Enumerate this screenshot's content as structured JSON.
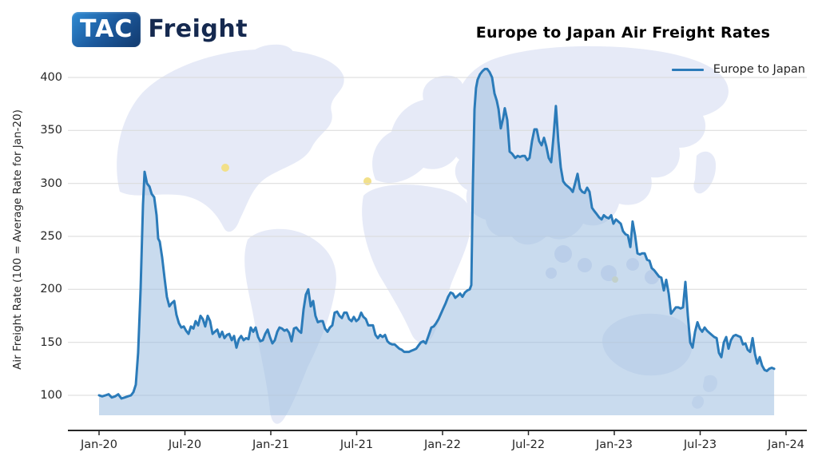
{
  "branding": {
    "logo_primary": "TAC",
    "logo_secondary": "Freight"
  },
  "header": {
    "title": "Europe to Japan Air Freight Rates"
  },
  "legend": {
    "label": "Europe to Japan"
  },
  "colors": {
    "line": "#2b7bb9",
    "fill": "#9dbde0",
    "grid": "#d9d9d9",
    "axis": "#262626",
    "map_watermark": "#e6eaf7",
    "map_marker_yellow": "#f2e089",
    "logo_badge_blue": "#1c5a9e",
    "logo_text_navy": "#15294f"
  },
  "chart_data": {
    "type": "area",
    "title": "Europe to Japan Air Freight Rates",
    "xlabel": "",
    "ylabel": "Air Freight Rate (100 = Average Rate for Jan-20)",
    "x_unit": "months_since_Jan-2020",
    "grid": "horizontal",
    "legend_position": "upper right",
    "ylim": [
      81,
      420
    ],
    "y_ticks": [
      100,
      150,
      200,
      250,
      300,
      350,
      400
    ],
    "x_ticks": [
      {
        "label": "Jan-20",
        "month": 0
      },
      {
        "label": "Jul-20",
        "month": 6
      },
      {
        "label": "Jan-21",
        "month": 12
      },
      {
        "label": "Jul-21",
        "month": 18
      },
      {
        "label": "Jan-22",
        "month": 24
      },
      {
        "label": "Jul-22",
        "month": 30
      },
      {
        "label": "Jan-23",
        "month": 36
      },
      {
        "label": "Jul-23",
        "month": 42
      },
      {
        "label": "Jan-24",
        "month": 48
      }
    ],
    "series": [
      {
        "name": "Europe to Japan",
        "points": [
          [
            0,
            100
          ],
          [
            0.22,
            99
          ],
          [
            0.45,
            100
          ],
          [
            0.67,
            101
          ],
          [
            0.89,
            98
          ],
          [
            1.12,
            99
          ],
          [
            1.34,
            101
          ],
          [
            1.56,
            97
          ],
          [
            1.79,
            98
          ],
          [
            2.01,
            99
          ],
          [
            2.23,
            100
          ],
          [
            2.4,
            103
          ],
          [
            2.57,
            110
          ],
          [
            2.73,
            140
          ],
          [
            2.9,
            200
          ],
          [
            3.07,
            280
          ],
          [
            3.18,
            311
          ],
          [
            3.35,
            300
          ],
          [
            3.52,
            297
          ],
          [
            3.68,
            290
          ],
          [
            3.85,
            287
          ],
          [
            4.02,
            270
          ],
          [
            4.13,
            248
          ],
          [
            4.24,
            245
          ],
          [
            4.41,
            230
          ],
          [
            4.58,
            210
          ],
          [
            4.74,
            193
          ],
          [
            4.91,
            184
          ],
          [
            5.08,
            187
          ],
          [
            5.25,
            189
          ],
          [
            5.41,
            176
          ],
          [
            5.58,
            168
          ],
          [
            5.75,
            164
          ],
          [
            5.92,
            165
          ],
          [
            6.08,
            161
          ],
          [
            6.25,
            158
          ],
          [
            6.42,
            165
          ],
          [
            6.59,
            163
          ],
          [
            6.75,
            170
          ],
          [
            6.92,
            166
          ],
          [
            7.09,
            175
          ],
          [
            7.25,
            172
          ],
          [
            7.42,
            165
          ],
          [
            7.59,
            175
          ],
          [
            7.76,
            170
          ],
          [
            7.93,
            158
          ],
          [
            8.09,
            160
          ],
          [
            8.26,
            162
          ],
          [
            8.43,
            155
          ],
          [
            8.6,
            160
          ],
          [
            8.76,
            154
          ],
          [
            8.93,
            157
          ],
          [
            9.1,
            158
          ],
          [
            9.27,
            152
          ],
          [
            9.43,
            156
          ],
          [
            9.6,
            145
          ],
          [
            9.77,
            153
          ],
          [
            9.93,
            156
          ],
          [
            10.1,
            152
          ],
          [
            10.27,
            154
          ],
          [
            10.44,
            153
          ],
          [
            10.6,
            164
          ],
          [
            10.77,
            160
          ],
          [
            10.94,
            164
          ],
          [
            11.11,
            155
          ],
          [
            11.27,
            151
          ],
          [
            11.44,
            152
          ],
          [
            11.61,
            158
          ],
          [
            11.78,
            162
          ],
          [
            11.94,
            155
          ],
          [
            12.11,
            149
          ],
          [
            12.28,
            152
          ],
          [
            12.45,
            160
          ],
          [
            12.61,
            164
          ],
          [
            12.78,
            163
          ],
          [
            12.95,
            161
          ],
          [
            13.12,
            162
          ],
          [
            13.28,
            159
          ],
          [
            13.45,
            151
          ],
          [
            13.62,
            163
          ],
          [
            13.78,
            164
          ],
          [
            13.95,
            161
          ],
          [
            14.12,
            159
          ],
          [
            14.29,
            181
          ],
          [
            14.45,
            195
          ],
          [
            14.62,
            200
          ],
          [
            14.79,
            184
          ],
          [
            14.96,
            189
          ],
          [
            15.12,
            175
          ],
          [
            15.29,
            169
          ],
          [
            15.46,
            170
          ],
          [
            15.63,
            170
          ],
          [
            15.79,
            163
          ],
          [
            15.96,
            160
          ],
          [
            16.13,
            164
          ],
          [
            16.3,
            166
          ],
          [
            16.46,
            178
          ],
          [
            16.63,
            179
          ],
          [
            16.8,
            175
          ],
          [
            16.97,
            173
          ],
          [
            17.13,
            178
          ],
          [
            17.3,
            178
          ],
          [
            17.47,
            172
          ],
          [
            17.64,
            170
          ],
          [
            17.8,
            174
          ],
          [
            17.97,
            170
          ],
          [
            18.14,
            172
          ],
          [
            18.31,
            178
          ],
          [
            18.47,
            174
          ],
          [
            18.64,
            172
          ],
          [
            18.81,
            166
          ],
          [
            18.97,
            166
          ],
          [
            19.14,
            166
          ],
          [
            19.31,
            157
          ],
          [
            19.48,
            154
          ],
          [
            19.64,
            157
          ],
          [
            19.81,
            155
          ],
          [
            19.98,
            157
          ],
          [
            20.15,
            151
          ],
          [
            20.31,
            149
          ],
          [
            20.48,
            148
          ],
          [
            20.65,
            148
          ],
          [
            20.82,
            146
          ],
          [
            20.98,
            144
          ],
          [
            21.15,
            143
          ],
          [
            21.32,
            141
          ],
          [
            21.49,
            141
          ],
          [
            21.65,
            141
          ],
          [
            21.82,
            142
          ],
          [
            21.99,
            143
          ],
          [
            22.16,
            144
          ],
          [
            22.32,
            147
          ],
          [
            22.49,
            150
          ],
          [
            22.66,
            151
          ],
          [
            22.83,
            149
          ],
          [
            22.99,
            155
          ],
          [
            23.22,
            164
          ],
          [
            23.38,
            165
          ],
          [
            23.55,
            168
          ],
          [
            23.72,
            172
          ],
          [
            23.89,
            177
          ],
          [
            24.05,
            182
          ],
          [
            24.22,
            187
          ],
          [
            24.39,
            193
          ],
          [
            24.56,
            197
          ],
          [
            24.72,
            196
          ],
          [
            24.89,
            192
          ],
          [
            25.06,
            194
          ],
          [
            25.23,
            196
          ],
          [
            25.39,
            193
          ],
          [
            25.56,
            197
          ],
          [
            25.73,
            199
          ],
          [
            25.9,
            200
          ],
          [
            26.01,
            204
          ],
          [
            26.12,
            300
          ],
          [
            26.23,
            370
          ],
          [
            26.34,
            390
          ],
          [
            26.45,
            398
          ],
          [
            26.62,
            403
          ],
          [
            26.79,
            406
          ],
          [
            26.96,
            408
          ],
          [
            27.12,
            408
          ],
          [
            27.29,
            405
          ],
          [
            27.46,
            400
          ],
          [
            27.63,
            385
          ],
          [
            27.79,
            378
          ],
          [
            27.91,
            370
          ],
          [
            28.07,
            352
          ],
          [
            28.24,
            362
          ],
          [
            28.35,
            371
          ],
          [
            28.52,
            360
          ],
          [
            28.69,
            330
          ],
          [
            28.86,
            328
          ],
          [
            29.08,
            324
          ],
          [
            29.25,
            326
          ],
          [
            29.41,
            325
          ],
          [
            29.58,
            326
          ],
          [
            29.75,
            326
          ],
          [
            29.92,
            322
          ],
          [
            30.08,
            324
          ],
          [
            30.25,
            340
          ],
          [
            30.42,
            351
          ],
          [
            30.58,
            351
          ],
          [
            30.75,
            340
          ],
          [
            30.92,
            336
          ],
          [
            31.09,
            343
          ],
          [
            31.25,
            335
          ],
          [
            31.42,
            324
          ],
          [
            31.59,
            320
          ],
          [
            31.76,
            345
          ],
          [
            31.92,
            373
          ],
          [
            32.09,
            340
          ],
          [
            32.26,
            315
          ],
          [
            32.43,
            302
          ],
          [
            32.59,
            299
          ],
          [
            32.76,
            297
          ],
          [
            32.93,
            295
          ],
          [
            33.1,
            292
          ],
          [
            33.26,
            300
          ],
          [
            33.43,
            309
          ],
          [
            33.6,
            295
          ],
          [
            33.77,
            292
          ],
          [
            33.93,
            291
          ],
          [
            34.1,
            296
          ],
          [
            34.27,
            292
          ],
          [
            34.44,
            277
          ],
          [
            34.6,
            274
          ],
          [
            34.77,
            271
          ],
          [
            34.94,
            268
          ],
          [
            35.11,
            266
          ],
          [
            35.27,
            270
          ],
          [
            35.44,
            268
          ],
          [
            35.61,
            267
          ],
          [
            35.78,
            270
          ],
          [
            35.94,
            262
          ],
          [
            36.11,
            266
          ],
          [
            36.28,
            264
          ],
          [
            36.45,
            262
          ],
          [
            36.61,
            255
          ],
          [
            36.78,
            252
          ],
          [
            36.95,
            251
          ],
          [
            37.12,
            240
          ],
          [
            37.28,
            264
          ],
          [
            37.45,
            251
          ],
          [
            37.62,
            234
          ],
          [
            37.79,
            233
          ],
          [
            37.95,
            234
          ],
          [
            38.12,
            234
          ],
          [
            38.29,
            228
          ],
          [
            38.46,
            227
          ],
          [
            38.62,
            220
          ],
          [
            38.79,
            218
          ],
          [
            38.96,
            215
          ],
          [
            39.13,
            212
          ],
          [
            39.29,
            211
          ],
          [
            39.46,
            199
          ],
          [
            39.63,
            209
          ],
          [
            39.8,
            196
          ],
          [
            39.96,
            177
          ],
          [
            40.13,
            180
          ],
          [
            40.3,
            183
          ],
          [
            40.47,
            183
          ],
          [
            40.63,
            182
          ],
          [
            40.8,
            183
          ],
          [
            40.97,
            207
          ],
          [
            41.14,
            175
          ],
          [
            41.3,
            150
          ],
          [
            41.47,
            145
          ],
          [
            41.64,
            160
          ],
          [
            41.81,
            169
          ],
          [
            41.97,
            163
          ],
          [
            42.14,
            160
          ],
          [
            42.31,
            164
          ],
          [
            42.48,
            161
          ],
          [
            42.64,
            159
          ],
          [
            42.81,
            157
          ],
          [
            42.98,
            155
          ],
          [
            43.15,
            154
          ],
          [
            43.31,
            140
          ],
          [
            43.48,
            136
          ],
          [
            43.65,
            150
          ],
          [
            43.82,
            155
          ],
          [
            43.98,
            144
          ],
          [
            44.15,
            152
          ],
          [
            44.32,
            156
          ],
          [
            44.49,
            157
          ],
          [
            44.65,
            156
          ],
          [
            44.82,
            155
          ],
          [
            44.99,
            148
          ],
          [
            45.16,
            149
          ],
          [
            45.32,
            143
          ],
          [
            45.49,
            141
          ],
          [
            45.66,
            154
          ],
          [
            45.83,
            139
          ],
          [
            45.99,
            130
          ],
          [
            46.16,
            136
          ],
          [
            46.33,
            128
          ],
          [
            46.5,
            124
          ],
          [
            46.66,
            123
          ],
          [
            46.83,
            125
          ],
          [
            47,
            126
          ],
          [
            47.17,
            125
          ]
        ]
      }
    ]
  }
}
